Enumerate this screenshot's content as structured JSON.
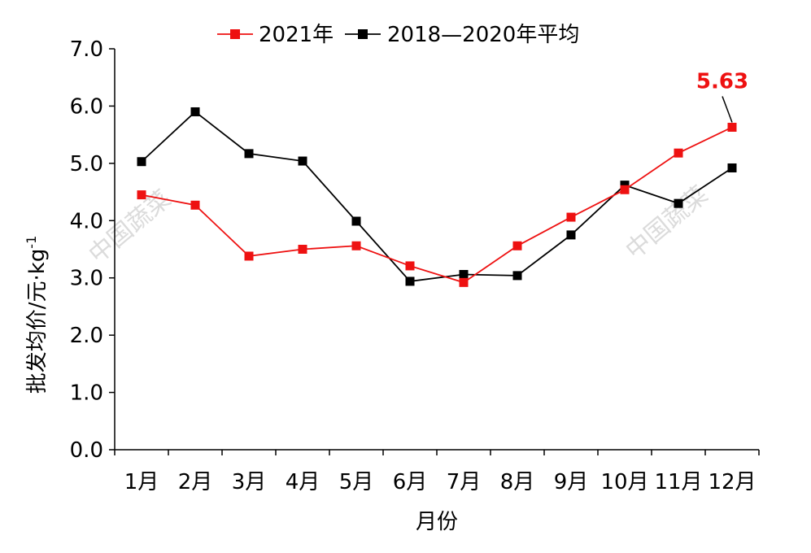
{
  "chart_data": {
    "type": "line",
    "categories": [
      "1月",
      "2月",
      "3月",
      "4月",
      "5月",
      "6月",
      "7月",
      "8月",
      "9月",
      "10月",
      "11月",
      "12月"
    ],
    "series": [
      {
        "name": "2021年",
        "color": "#ee1111",
        "values": [
          4.45,
          4.27,
          3.38,
          3.5,
          3.56,
          3.21,
          2.92,
          3.56,
          4.06,
          4.54,
          5.18,
          5.63
        ]
      },
      {
        "name": "2018—2020年平均",
        "color": "#000000",
        "values": [
          5.03,
          5.9,
          5.17,
          5.04,
          3.99,
          2.94,
          3.06,
          3.04,
          3.75,
          4.62,
          4.3,
          4.92
        ]
      }
    ],
    "xlabel": "月份",
    "ylabel": "批发均价/元·kg",
    "ylabel_superscript": "-1",
    "ylim": [
      0,
      7
    ],
    "yticks": [
      "0.0",
      "1.0",
      "2.0",
      "3.0",
      "4.0",
      "5.0",
      "6.0",
      "7.0"
    ],
    "annotation": {
      "text": "5.63",
      "color": "#ee1111"
    },
    "legend": "top",
    "grid": false,
    "watermark": "中国蔬菜"
  }
}
